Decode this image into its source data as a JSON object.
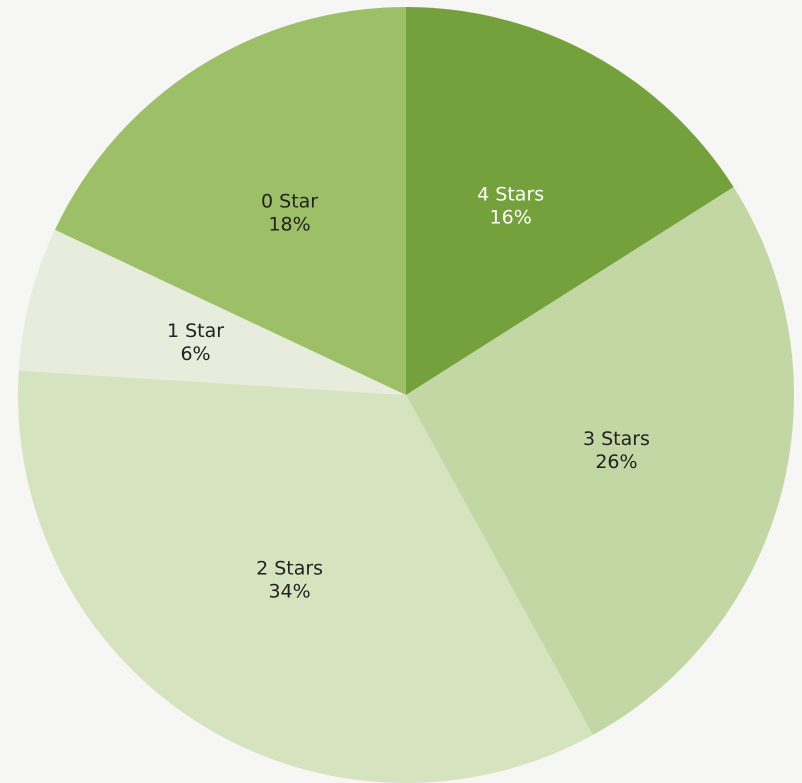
{
  "chart_data": {
    "type": "pie",
    "title": "",
    "slices": [
      {
        "label": "4 Stars",
        "percent_label": "16%",
        "value": 16,
        "color": "#74a13b",
        "text_color": "#ffffff"
      },
      {
        "label": "3 Stars",
        "percent_label": "26%",
        "value": 26,
        "color": "#c3d7a4",
        "text_color": "#222222"
      },
      {
        "label": "2 Stars",
        "percent_label": "34%",
        "value": 34,
        "color": "#d6e3bf",
        "text_color": "#222222"
      },
      {
        "label": "1 Star",
        "percent_label": "6%",
        "value": 6,
        "color": "#e7ecdd",
        "text_color": "#222222"
      },
      {
        "label": "0 Star",
        "percent_label": "18%",
        "value": 18,
        "color": "#9cbf68",
        "text_color": "#222222"
      }
    ],
    "start_angle": "12 o'clock",
    "direction": "clockwise",
    "legend": "none"
  }
}
